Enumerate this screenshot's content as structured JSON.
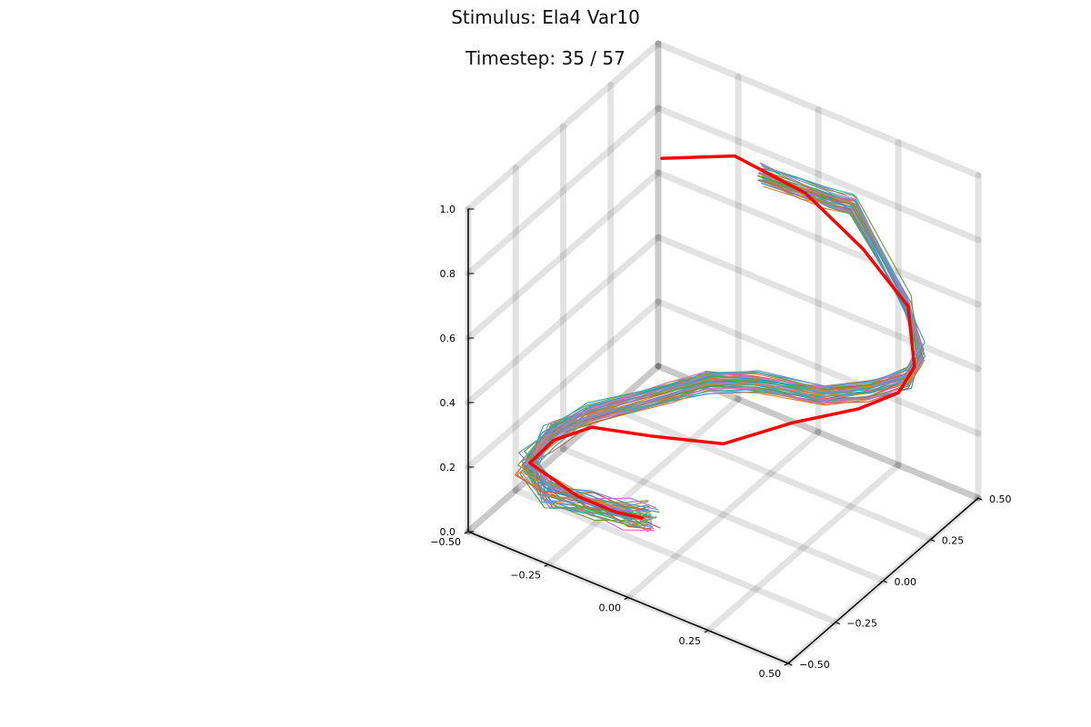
{
  "chart_data": {
    "type": "line",
    "dimensions": 3,
    "title": "Stimulus: Ela4 Var10",
    "subtitle": "Timestep: 35 / 57",
    "grid": true,
    "xlim": [
      -0.5,
      0.5
    ],
    "ylim": [
      -0.5,
      0.5
    ],
    "zlim": [
      0.0,
      1.0
    ],
    "x_ticks": [
      "−0.50",
      "−0.25",
      "0.00",
      "0.25",
      "0.50"
    ],
    "y_ticks": [
      "−0.50",
      "−0.25",
      "0.00",
      "0.25",
      "0.50"
    ],
    "z_ticks": [
      "0.0",
      "0.2",
      "0.4",
      "0.6",
      "0.8",
      "1.0"
    ],
    "highlight_color": "#ff0000",
    "ensemble_colors": [
      "#1f9bd8",
      "#e6802b",
      "#3ea84a",
      "#c7604f",
      "#9d7fd6",
      "#b5895a",
      "#d86fc4",
      "#7f9f3a",
      "#29b0b0",
      "#6c8fd9"
    ],
    "ensemble_count": 40,
    "highlight_series": {
      "name": "",
      "points": [
        [
          -0.37,
          0.3,
          0.8
        ],
        [
          -0.19,
          0.38,
          0.84
        ],
        [
          0.02,
          0.4,
          0.8
        ],
        [
          0.2,
          0.4,
          0.7
        ],
        [
          0.34,
          0.4,
          0.58
        ],
        [
          0.36,
          0.4,
          0.4
        ],
        [
          0.31,
          0.4,
          0.3
        ],
        [
          0.21,
          0.36,
          0.23
        ],
        [
          0.08,
          0.23,
          0.2
        ],
        [
          0.0,
          0.0,
          0.22
        ],
        [
          -0.15,
          -0.13,
          0.25
        ],
        [
          -0.28,
          -0.22,
          0.27
        ],
        [
          -0.4,
          -0.22,
          0.18
        ],
        [
          -0.45,
          -0.26,
          0.11
        ],
        [
          -0.33,
          -0.21,
          0.03
        ],
        [
          -0.21,
          -0.21,
          0.03
        ],
        [
          -0.14,
          -0.19,
          0.03
        ]
      ]
    },
    "ensemble_path": {
      "points": [
        [
          -0.09,
          0.35,
          0.84
        ],
        [
          0.01,
          0.38,
          0.82
        ],
        [
          0.09,
          0.4,
          0.81
        ],
        [
          0.17,
          0.4,
          0.82
        ],
        [
          0.34,
          0.4,
          0.58
        ],
        [
          0.38,
          0.4,
          0.45
        ],
        [
          0.34,
          0.4,
          0.36
        ],
        [
          0.24,
          0.36,
          0.3
        ],
        [
          0.14,
          0.29,
          0.28
        ],
        [
          0.02,
          0.14,
          0.35
        ],
        [
          -0.06,
          0.02,
          0.38
        ],
        [
          -0.12,
          -0.08,
          0.37
        ],
        [
          -0.3,
          -0.2,
          0.29
        ],
        [
          -0.41,
          -0.22,
          0.2
        ],
        [
          -0.46,
          -0.26,
          0.1
        ],
        [
          -0.4,
          -0.24,
          0.03
        ],
        [
          -0.28,
          -0.22,
          0.03
        ],
        [
          -0.18,
          -0.2,
          0.03
        ],
        [
          -0.12,
          -0.18,
          0.03
        ]
      ]
    }
  }
}
